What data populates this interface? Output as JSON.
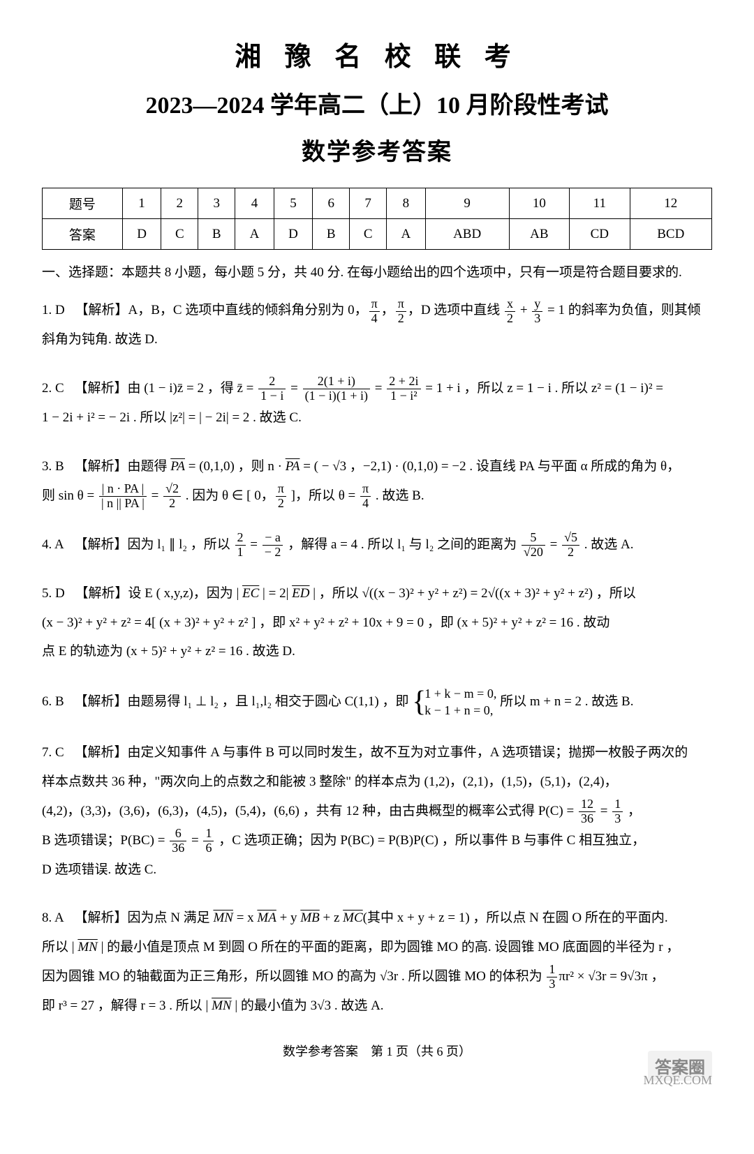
{
  "header": {
    "line1": "湘 豫 名 校 联 考",
    "line2": "2023—2024 学年高二（上）10 月阶段性考试",
    "line3": "数学参考答案"
  },
  "answer_table": {
    "header_label": "题号",
    "answer_label": "答案",
    "columns": [
      "1",
      "2",
      "3",
      "4",
      "5",
      "6",
      "7",
      "8",
      "9",
      "10",
      "11",
      "12"
    ],
    "answers": [
      "D",
      "C",
      "B",
      "A",
      "D",
      "B",
      "C",
      "A",
      "ABD",
      "AB",
      "CD",
      "BCD"
    ]
  },
  "section1_heading": "一、选择题：本题共 8 小题，每小题 5 分，共 40 分. 在每小题给出的四个选项中，只有一项是符合题目要求的.",
  "q1": {
    "num": "1.",
    "ans": "D",
    "label": "【解析】",
    "text_a": "A，B，C 选项中直线的倾斜角分别为 0，",
    "frac1_num": "π",
    "frac1_den": "4",
    "text_b": "，",
    "frac2_num": "π",
    "frac2_den": "2",
    "text_c": "，D 选项中直线 ",
    "frac3_num": "x",
    "frac3_den": "2",
    "text_d": " + ",
    "frac4_num": "y",
    "frac4_den": "3",
    "text_e": " = 1 的斜率为负值，则其倾",
    "text_f": "斜角为钝角. 故选 D."
  },
  "q2": {
    "num": "2.",
    "ans": "C",
    "label": "【解析】",
    "text_a": "由 (1 − i)z̄ = 2 ，得 z̄ = ",
    "frac1_num": "2",
    "frac1_den": "1 − i",
    "text_b": " = ",
    "frac2_num": "2(1 + i)",
    "frac2_den": "(1 − i)(1 + i)",
    "text_c": " = ",
    "frac3_num": "2 + 2i",
    "frac3_den": "1 − i²",
    "text_d": " = 1 + i ，所以 z = 1 − i . 所以 z² = (1 − i)² = ",
    "text_e": "1 − 2i + i² = − 2i . 所以 |z²| = | − 2i| = 2 . 故选 C."
  },
  "q3": {
    "num": "3.",
    "ans": "B",
    "label": "【解析】",
    "text_a": "由题得 ",
    "pa": "PA",
    "text_b": " = (0,1,0) ，则 n · ",
    "text_c": " = ( − √3 ，−2,1) · (0,1,0) = −2 . 设直线 PA 与平面 α 所成的角为 θ，",
    "text_d": "则 sin θ = ",
    "frac1_num": "| n · PA |",
    "frac1_den": "| n || PA |",
    "text_e": " = ",
    "frac2_num": "√2",
    "frac2_den": "2",
    "text_f": " . 因为 θ ∈ [ 0，",
    "frac3_num": "π",
    "frac3_den": "2",
    "text_g": " ]，所以 θ = ",
    "frac4_num": "π",
    "frac4_den": "4",
    "text_h": " . 故选 B."
  },
  "q4": {
    "num": "4.",
    "ans": "A",
    "label": "【解析】",
    "text_a": "因为 l₁ ∥ l₂ ，所以 ",
    "frac1_num": "2",
    "frac1_den": "1",
    "text_b": " = ",
    "frac2_num": "− a",
    "frac2_den": "− 2",
    "text_c": " ，解得 a = 4 . 所以 l₁ 与 l₂ 之间的距离为 ",
    "frac3_num": "5",
    "frac3_den": "√20",
    "text_d": " = ",
    "frac4_num": "√5",
    "frac4_den": "2",
    "text_e": " . 故选 A."
  },
  "q5": {
    "num": "5.",
    "ans": "D",
    "label": "【解析】",
    "text_a": "设 E ( x,y,z)，因为 | ",
    "ec": "EC",
    "text_b": " | = 2| ",
    "ed": "ED",
    "text_c": " | ，所以 √((x − 3)² + y² + z²) = 2√((x + 3)² + y² + z²) ，所以",
    "text_d": "(x − 3)² + y² + z² = 4[ (x + 3)² + y² + z² ] ，即 x² + y² + z² + 10x + 9 = 0 ，即 (x + 5)² + y² + z² = 16 . 故动",
    "text_e": "点 E 的轨迹为 (x + 5)² + y² + z² = 16 . 故选 D."
  },
  "q6": {
    "num": "6.",
    "ans": "B",
    "label": "【解析】",
    "text_a": "由题易得 l₁ ⊥ l₂ ，且 l₁,l₂ 相交于圆心 C(1,1) ，即 ",
    "brace1": "1 + k − m = 0,",
    "brace2": "k − 1 + n = 0,",
    "text_b": " 所以 m + n = 2 . 故选 B."
  },
  "q7": {
    "num": "7.",
    "ans": "C",
    "label": "【解析】",
    "text_a": "由定义知事件 A 与事件 B 可以同时发生，故不互为对立事件，A 选项错误；抛掷一枚骰子两次的",
    "text_b": "样本点数共 36 种，\"两次向上的点数之和能被 3 整除\" 的样本点为 (1,2)，(2,1)，(1,5)，(5,1)，(2,4)，",
    "text_c": "(4,2)，(3,3)，(3,6)，(6,3)，(4,5)，(5,4)，(6,6) ，共有 12 种，由古典概型的概率公式得 P(C) = ",
    "frac1_num": "12",
    "frac1_den": "36",
    "text_d": " = ",
    "frac2_num": "1",
    "frac2_den": "3",
    "text_e": " ，",
    "text_f": "B 选项错误；P(BC) = ",
    "frac3_num": "6",
    "frac3_den": "36",
    "text_g": " = ",
    "frac4_num": "1",
    "frac4_den": "6",
    "text_h": " ，C 选项正确；因为 P(BC) = P(B)P(C) ，所以事件 B 与事件 C 相互独立，",
    "text_i": "D 选项错误. 故选 C."
  },
  "q8": {
    "num": "8.",
    "ans": "A",
    "label": "【解析】",
    "text_a": "因为点 N 满足 ",
    "mn": "MN",
    "text_b": " = x ",
    "ma": "MA",
    "text_c": " + y ",
    "mb": "MB",
    "text_d": " + z ",
    "mc": "MC",
    "text_e": "(其中 x + y + z = 1) ，所以点 N 在圆 O 所在的平面内.",
    "text_f": "所以 | ",
    "text_g": " | 的最小值是顶点 M 到圆 O 所在的平面的距离，即为圆锥 MO 的高. 设圆锥 MO 底面圆的半径为 r ，",
    "text_h": "因为圆锥 MO 的轴截面为正三角形，所以圆锥 MO 的高为 √3r . 所以圆锥 MO 的体积为 ",
    "frac1_num": "1",
    "frac1_den": "3",
    "text_i": "πr² × √3r = 9√3π ，",
    "text_j": "即 r³ = 27 ，解得 r = 3 . 所以 | ",
    "text_k": " | 的最小值为 3√3 . 故选 A."
  },
  "footer": "数学参考答案　第 1 页（共 6 页）",
  "watermarks": {
    "w1": "答案圈",
    "w2": "MXQE.COM"
  }
}
